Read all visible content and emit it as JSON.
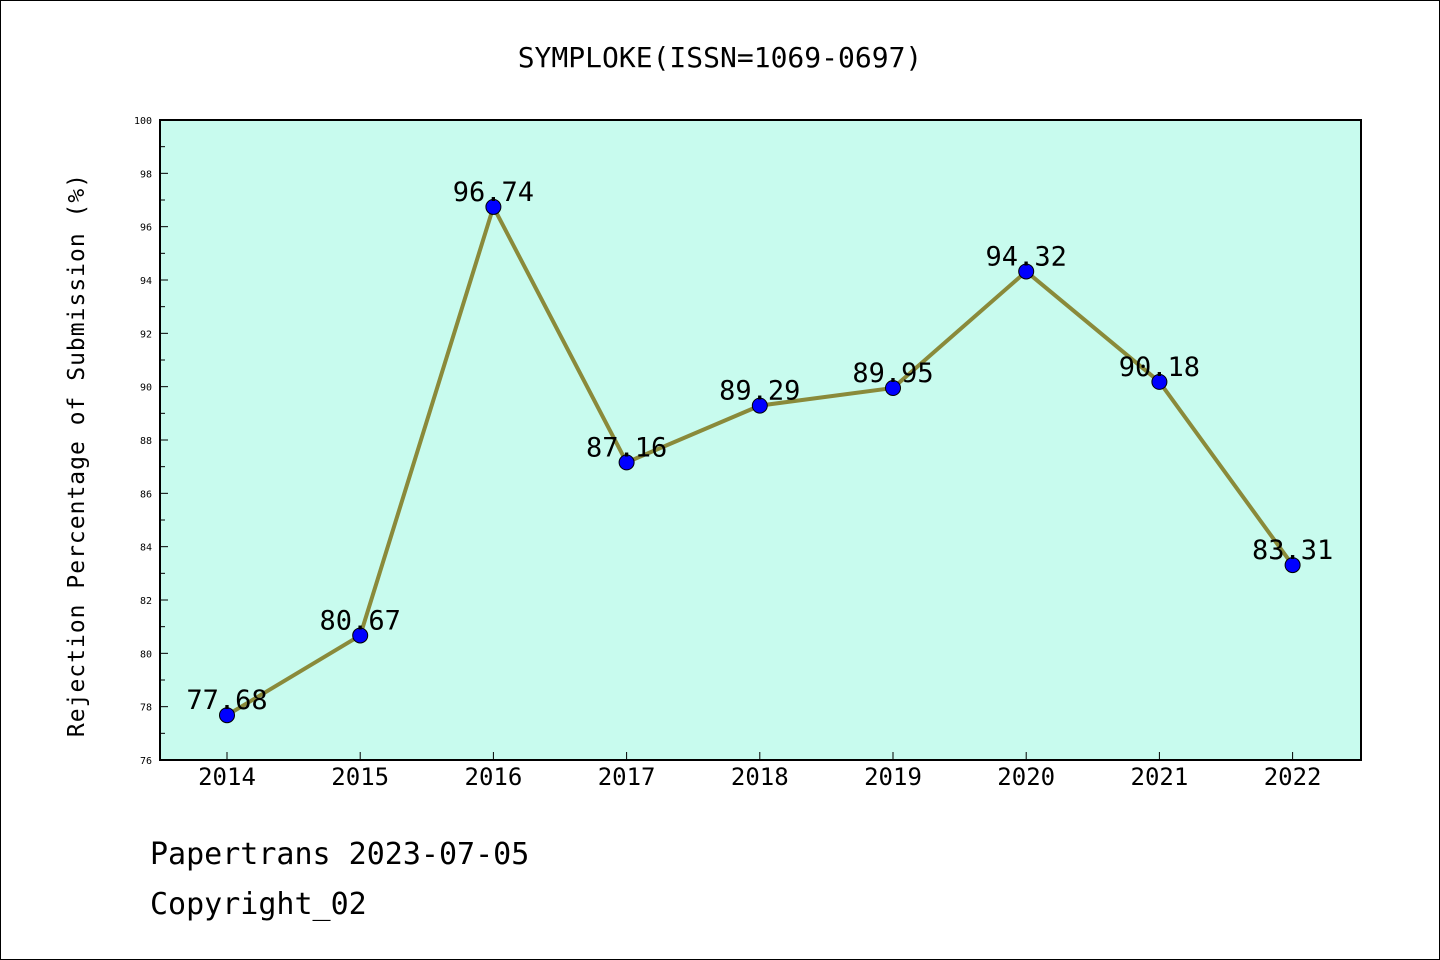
{
  "chart_data": {
    "type": "line",
    "title": "SYMPLOKE(ISSN=1069-0697)",
    "xlabel": "",
    "ylabel": "Rejection Percentage of Submission (%)",
    "categories": [
      "2014",
      "2015",
      "2016",
      "2017",
      "2018",
      "2019",
      "2020",
      "2021",
      "2022"
    ],
    "values": [
      77.68,
      80.67,
      96.74,
      87.16,
      89.29,
      89.95,
      94.32,
      90.18,
      83.31
    ],
    "value_labels": [
      "77.68",
      "80.67",
      "96.74",
      "87.16",
      "89.29",
      "89.95",
      "94.32",
      "90.18",
      "83.31"
    ],
    "ylim": [
      76,
      100
    ],
    "yticks": [
      "76",
      "78",
      "80",
      "82",
      "84",
      "86",
      "88",
      "90",
      "92",
      "94",
      "96",
      "98",
      "100"
    ],
    "grid": false,
    "legend": "none",
    "colors": {
      "plot_background": "#c8fbee",
      "line": "#8a8a3a",
      "marker": "#0000ff"
    }
  },
  "footer": {
    "line1": "Papertrans 2023-07-05",
    "line2": "Copyright_02"
  }
}
